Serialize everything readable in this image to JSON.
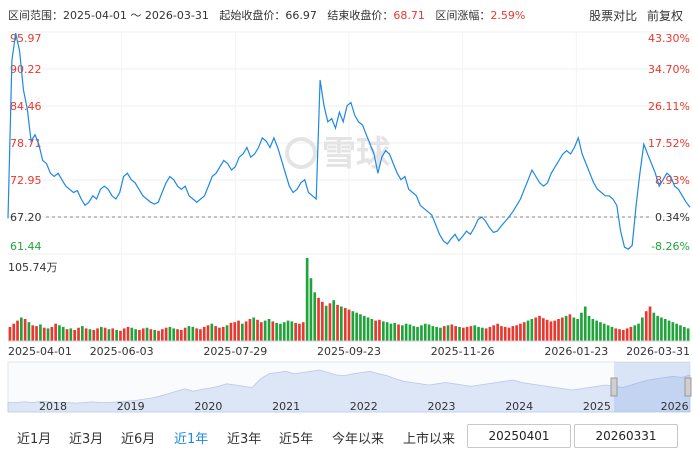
{
  "header": {
    "range_label": "区间范围：",
    "range_value": "2025-04-01 ～ 2026-03-31",
    "open_label": "起始收盘价：",
    "open_value": "66.97",
    "close_label": "结束收盘价：",
    "close_value": "68.71",
    "change_label": "区间涨幅：",
    "change_value": "2.59%",
    "compare_label": "股票对比",
    "adjust_label": "前复权"
  },
  "watermark": "雪球",
  "colors": {
    "price_line": "#1e88e5",
    "up": "#e8382f",
    "down": "#21a33c",
    "baseline": "#888888",
    "navigator_fill": "#dce6f6"
  },
  "chart_data": {
    "type": "line",
    "y_left_ticks": [
      "95.97",
      "90.22",
      "84.46",
      "78.71",
      "72.95",
      "67.20",
      "61.44"
    ],
    "y_right_ticks": [
      "43.30%",
      "34.70%",
      "26.11%",
      "17.52%",
      "8.93%",
      "0.34%",
      "-8.26%"
    ],
    "ylim": [
      61.44,
      95.97
    ],
    "baseline": 67.2,
    "x_ticks": [
      "2025-04-01",
      "2025-06-03",
      "2025-07-29",
      "2025-09-23",
      "2025-11-26",
      "2026-01-23",
      "2026-03-31"
    ],
    "price": [
      66.97,
      91.5,
      95.8,
      93,
      87,
      84,
      79,
      80,
      78.5,
      76,
      75.5,
      74,
      73.5,
      74,
      73,
      72,
      71.5,
      71,
      71.3,
      70,
      69,
      69.5,
      70.5,
      70,
      71.5,
      72,
      71.5,
      70.5,
      70,
      71,
      73.5,
      74,
      73,
      72.5,
      71.5,
      70.5,
      70,
      69.5,
      69.2,
      69.5,
      71,
      72.5,
      73.5,
      73,
      72,
      71.5,
      72,
      70.5,
      70,
      69.5,
      70,
      70.5,
      72,
      73.5,
      74,
      75,
      76,
      75.5,
      74.5,
      75,
      76.5,
      77,
      78,
      76.5,
      77,
      78,
      79.5,
      79,
      78,
      79.5,
      78,
      76,
      74,
      72,
      71,
      71.5,
      72.5,
      73,
      71,
      70.5,
      70,
      88.5,
      84.5,
      82,
      82.5,
      81,
      83.5,
      82,
      84.5,
      85,
      83,
      82,
      81.5,
      80,
      78.5,
      77,
      74,
      76.5,
      77.5,
      77,
      75.5,
      74,
      73,
      73.5,
      71.5,
      71,
      70.5,
      69,
      68.5,
      68,
      67.5,
      66,
      64.5,
      63.5,
      63,
      63.8,
      64.5,
      63.5,
      64.2,
      65,
      64.5,
      65.5,
      66.8,
      67.2,
      66.5,
      65.5,
      64.8,
      65,
      65.8,
      66.5,
      67.2,
      68,
      69,
      70,
      71.5,
      73,
      74.5,
      73.5,
      72.5,
      72,
      72.5,
      74,
      75,
      76,
      77,
      77.5,
      77,
      78,
      79.5,
      77,
      75.5,
      74,
      72.5,
      71.5,
      71,
      70.5,
      70.5,
      70,
      69,
      65,
      62.5,
      62.2,
      62.8,
      69,
      74,
      78.5,
      77,
      75.5,
      74,
      72,
      73,
      74,
      73.5,
      72,
      71.5,
      70.5,
      69.5,
      68.71
    ],
    "volume_unit_label": "105.74万",
    "volume_max": 105.74,
    "volume": [
      18,
      22,
      26,
      30,
      28,
      24,
      20,
      19,
      21,
      17,
      16,
      18,
      22,
      20,
      18,
      15,
      16,
      14,
      17,
      19,
      16,
      15,
      14,
      16,
      18,
      17,
      15,
      16,
      14,
      13,
      16,
      18,
      17,
      15,
      14,
      16,
      17,
      15,
      14,
      13,
      15,
      17,
      18,
      16,
      15,
      14,
      17,
      19,
      18,
      16,
      15,
      18,
      20,
      22,
      19,
      17,
      18,
      20,
      23,
      24,
      26,
      22,
      25,
      28,
      30,
      27,
      24,
      26,
      28,
      25,
      23,
      22,
      24,
      26,
      25,
      23,
      22,
      24,
      105.74,
      80,
      62,
      55,
      50,
      45,
      48,
      52,
      46,
      44,
      42,
      40,
      38,
      36,
      34,
      32,
      30,
      28,
      26,
      27,
      25,
      24,
      22,
      23,
      21,
      20,
      22,
      21,
      19,
      18,
      20,
      22,
      21,
      19,
      18,
      17,
      19,
      20,
      21,
      19,
      18,
      17,
      18,
      19,
      20,
      18,
      17,
      16,
      18,
      20,
      22,
      19,
      18,
      17,
      19,
      20,
      22,
      24,
      26,
      28,
      30,
      32,
      29,
      27,
      25,
      26,
      28,
      30,
      32,
      34,
      30,
      28,
      36,
      44,
      32,
      28,
      26,
      24,
      22,
      20,
      18,
      16,
      15,
      14,
      16,
      18,
      20,
      22,
      30,
      38,
      44,
      36,
      32,
      30,
      28,
      26,
      24,
      22,
      20,
      18,
      16
    ],
    "volume_up": [
      true,
      true,
      true,
      false,
      true,
      false,
      true,
      true,
      false,
      true,
      false,
      true,
      true,
      false,
      false,
      true,
      false,
      true,
      true,
      false,
      true,
      false,
      true,
      true,
      false,
      true,
      false,
      true,
      false,
      true,
      true,
      true,
      false,
      false,
      true,
      true,
      false,
      true,
      false,
      true,
      true,
      true,
      false,
      false,
      true,
      true,
      true,
      false,
      false,
      true,
      true,
      true,
      true,
      false,
      true,
      true,
      true,
      false,
      true,
      true,
      true,
      false,
      true,
      true,
      false,
      true,
      true,
      false,
      false,
      true,
      false,
      false,
      false,
      false,
      false,
      true,
      true,
      true,
      false,
      false,
      false,
      true,
      true,
      false,
      true,
      false,
      true,
      false,
      true,
      true,
      false,
      false,
      false,
      false,
      false,
      false,
      true,
      true,
      false,
      false,
      false,
      false,
      true,
      false,
      false,
      false,
      false,
      false,
      false,
      false,
      false,
      false,
      false,
      false,
      true,
      false,
      true,
      true,
      false,
      true,
      true,
      true,
      false,
      false,
      false,
      true,
      true,
      true,
      true,
      true,
      true,
      true,
      true,
      true,
      true,
      true,
      false,
      false,
      true,
      true,
      true,
      true,
      true,
      true,
      true,
      true,
      false,
      true,
      false,
      false,
      false,
      false,
      false,
      false,
      false,
      false,
      false,
      false,
      false,
      true,
      true,
      true,
      true,
      true,
      false,
      false,
      false,
      true,
      true,
      false,
      false,
      false,
      false,
      false,
      false,
      false,
      false
    ],
    "navigator_years": [
      "2018",
      "2019",
      "2020",
      "2021",
      "2022",
      "2023",
      "2024",
      "2025",
      "2026"
    ],
    "navigator_series": [
      12,
      12,
      13,
      12,
      14,
      13,
      12,
      12,
      11,
      12,
      13,
      12,
      12,
      13,
      14,
      15,
      17,
      19,
      22,
      26,
      30,
      34,
      30,
      33,
      35,
      38,
      42,
      40,
      38,
      36,
      50,
      58,
      60,
      62,
      58,
      60,
      62,
      64,
      60,
      56,
      55,
      58,
      60,
      62,
      58,
      55,
      50,
      46,
      44,
      42,
      40,
      42,
      44,
      42,
      40,
      38,
      40,
      42,
      44,
      46,
      48,
      44,
      42,
      40,
      38,
      36,
      34,
      32,
      34,
      36,
      38,
      40,
      38,
      36,
      40,
      44,
      48,
      50,
      52,
      54,
      52,
      56
    ]
  },
  "periods": [
    "近1月",
    "近3月",
    "近6月",
    "近1年",
    "近3年",
    "近5年",
    "今年以来",
    "上市以来"
  ],
  "active_period": "近1年",
  "date_from": "20250401",
  "date_to": "20260331"
}
